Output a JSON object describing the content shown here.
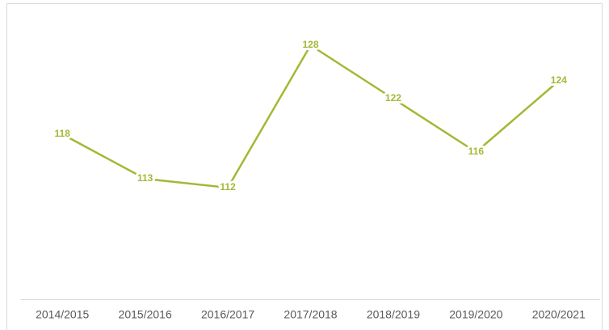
{
  "chart_data": {
    "type": "line",
    "categories": [
      "2014/2015",
      "2015/2016",
      "2016/2017",
      "2017/2018",
      "2018/2019",
      "2019/2020",
      "2020/2021"
    ],
    "values": [
      118,
      113,
      112,
      128,
      122,
      116,
      124
    ],
    "color": "#a2b934"
  }
}
